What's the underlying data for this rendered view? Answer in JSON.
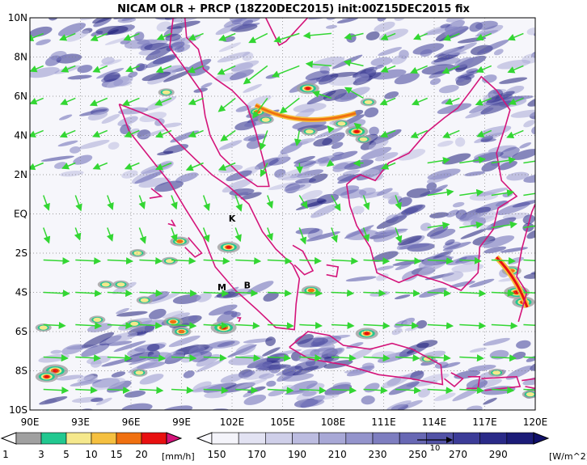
{
  "title": "NICAM OLR + PRCP (18Z20DEC2015) init:00Z15DEC2015 fix",
  "map": {
    "lon_labels": [
      "90E",
      "93E",
      "96E",
      "99E",
      "102E",
      "105E",
      "108E",
      "111E",
      "114E",
      "117E",
      "120E"
    ],
    "lat_labels": [
      "10N",
      "8N",
      "6N",
      "4N",
      "2N",
      "EQ",
      "2S",
      "4S",
      "6S",
      "8S",
      "10S"
    ],
    "lon_range": [
      90,
      120
    ],
    "lat_range": [
      -10,
      10
    ],
    "grid": "dotted",
    "markers": [
      {
        "label": "K",
        "lon": 102.0,
        "lat": -0.4
      },
      {
        "label": "M",
        "lon": 101.4,
        "lat": -3.9
      },
      {
        "label": "B",
        "lon": 102.9,
        "lat": -3.8
      }
    ],
    "colors": {
      "coastline": "#d4147a",
      "wind_vector": "#33d633",
      "olr_dark": "#1c1c7a",
      "olr_light": "#dcdcf0"
    }
  },
  "precip_legend": {
    "unit": "[mm/h]",
    "labels": [
      "1",
      "3",
      "5",
      "10",
      "15",
      "20"
    ],
    "colors": [
      "#a0a0a0",
      "#22c890",
      "#f5e88c",
      "#f5c040",
      "#f07010",
      "#e81010",
      "#d4147a"
    ]
  },
  "olr_legend": {
    "unit": "[W/m^2]",
    "labels": [
      "150",
      "170",
      "190",
      "210",
      "230",
      "250",
      "270",
      "290"
    ],
    "colors": [
      "#f4f4fa",
      "#e2e2f2",
      "#cfcfe9",
      "#bcbce0",
      "#a8a8d6",
      "#9494cc",
      "#7e7ec0",
      "#6868b4",
      "#5252a6",
      "#3c3c98",
      "#2a2a88",
      "#1c1c78"
    ]
  },
  "vector_scale": {
    "label": "10"
  }
}
